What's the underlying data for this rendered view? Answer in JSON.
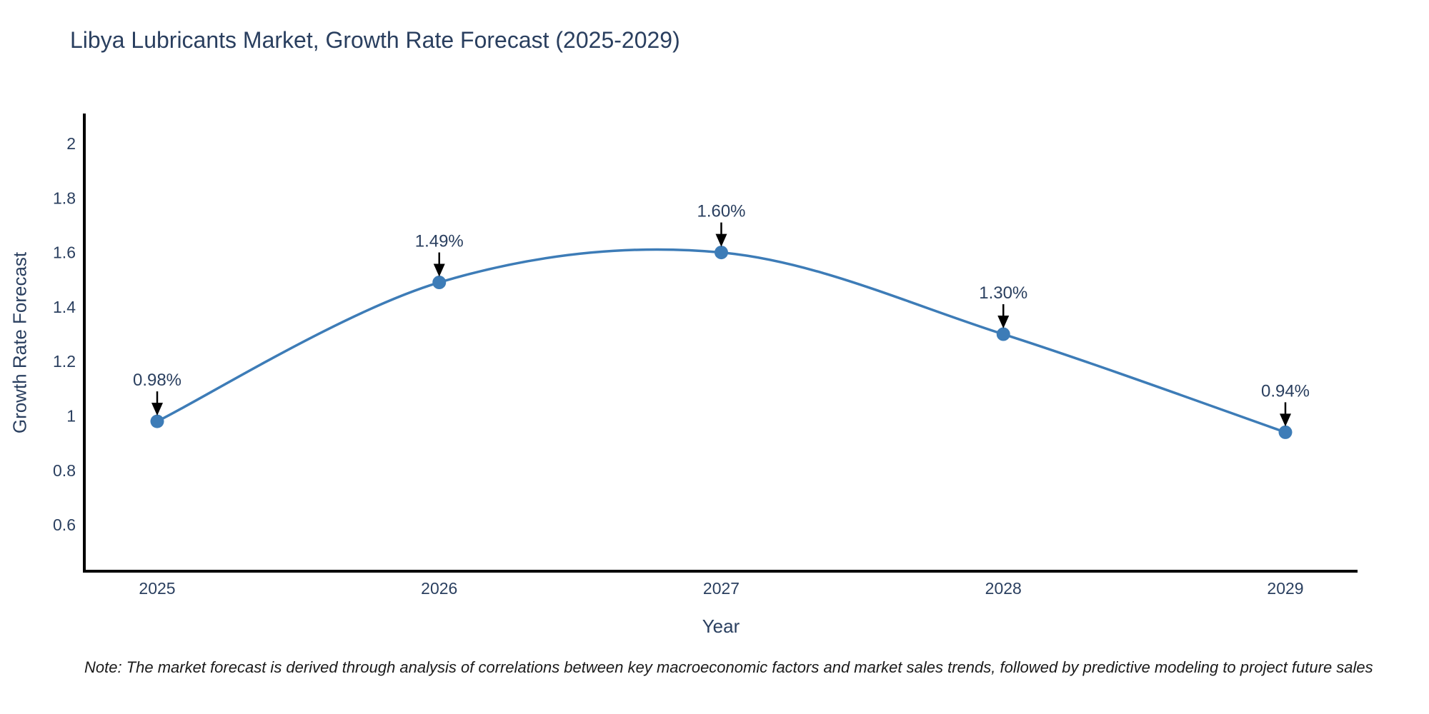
{
  "chart_data": {
    "type": "line",
    "title": "Libya Lubricants Market, Growth Rate Forecast (2025-2029)",
    "xlabel": "Year",
    "ylabel": "Growth Rate Forecast",
    "x": [
      2025,
      2026,
      2027,
      2028,
      2029
    ],
    "series": [
      {
        "name": "Growth Rate Forecast",
        "values": [
          0.98,
          1.49,
          1.6,
          1.3,
          0.94
        ],
        "point_labels": [
          "0.98%",
          "1.49%",
          "1.60%",
          "1.30%",
          "0.94%"
        ]
      }
    ],
    "xtick_labels": [
      "2025",
      "2026",
      "2027",
      "2028",
      "2029"
    ],
    "ytick_values": [
      0.6,
      0.8,
      1,
      1.2,
      1.4,
      1.6,
      1.8,
      2
    ],
    "ytick_labels": [
      "0.6",
      "0.8",
      "1",
      "1.2",
      "1.4",
      "1.6",
      "1.8",
      "2"
    ],
    "ylim": [
      0.43,
      2.11
    ],
    "grid": false,
    "legend": "none",
    "line_shape": "spline",
    "colors": {
      "line": "#3d7cb7",
      "marker": "#3d7cb7",
      "axis": "#000000",
      "text": "#2a3f5f",
      "arrow": "#000000",
      "background": "#ffffff"
    },
    "note": "Note: The market forecast is derived through analysis of correlations between key macroeconomic factors and market sales trends, followed by predictive modeling to project future sales"
  }
}
